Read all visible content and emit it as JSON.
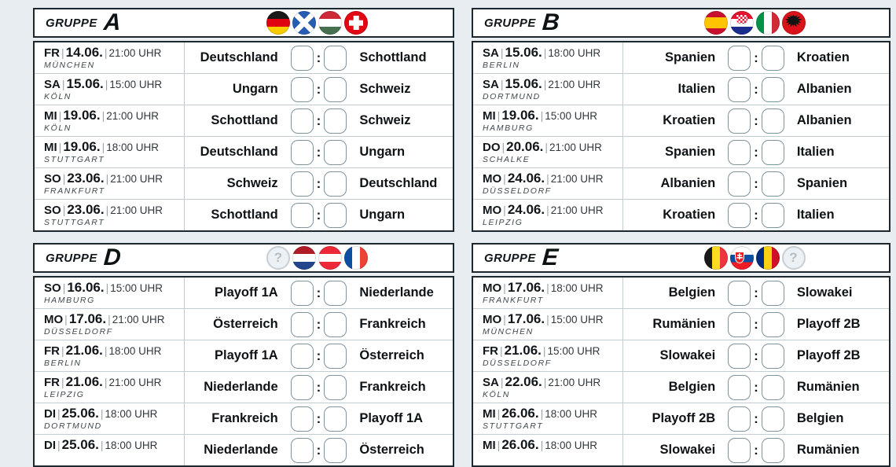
{
  "board": {
    "separator": "|",
    "score_colon": ":",
    "playoff_glyph": "?",
    "colors": {
      "page_background": "#e8edf1",
      "panel_border": "#1c272e",
      "row_separator": "#c2ccd3",
      "score_box_border": "#7f93a0",
      "text": "#0e1316"
    },
    "groups": [
      {
        "name": "A",
        "title_label": "GRUPPE",
        "letter": "A",
        "flags": [
          "germany",
          "scotland",
          "hungary",
          "switzerland"
        ],
        "matches": [
          {
            "day": "FR",
            "date": "14.06.",
            "time": "21:00 UHR",
            "venue": "MÜNCHEN",
            "home": "Deutschland",
            "away": "Schottland",
            "score_home": "",
            "score_away": ""
          },
          {
            "day": "SA",
            "date": "15.06.",
            "time": "15:00 UHR",
            "venue": "KÖLN",
            "home": "Ungarn",
            "away": "Schweiz",
            "score_home": "",
            "score_away": ""
          },
          {
            "day": "MI",
            "date": "19.06.",
            "time": "21:00 UHR",
            "venue": "KÖLN",
            "home": "Schottland",
            "away": "Schweiz",
            "score_home": "",
            "score_away": ""
          },
          {
            "day": "MI",
            "date": "19.06.",
            "time": "18:00 UHR",
            "venue": "STUTTGART",
            "home": "Deutschland",
            "away": "Ungarn",
            "score_home": "",
            "score_away": ""
          },
          {
            "day": "SO",
            "date": "23.06.",
            "time": "21:00 UHR",
            "venue": "FRANKFURT",
            "home": "Schweiz",
            "away": "Deutschland",
            "score_home": "",
            "score_away": ""
          },
          {
            "day": "SO",
            "date": "23.06.",
            "time": "21:00 UHR",
            "venue": "STUTTGART",
            "home": "Schottland",
            "away": "Ungarn",
            "score_home": "",
            "score_away": ""
          }
        ]
      },
      {
        "name": "B",
        "title_label": "GRUPPE",
        "letter": "B",
        "flags": [
          "spain",
          "croatia",
          "italy",
          "albania"
        ],
        "matches": [
          {
            "day": "SA",
            "date": "15.06.",
            "time": "18:00 UHR",
            "venue": "BERLIN",
            "home": "Spanien",
            "away": "Kroatien",
            "score_home": "",
            "score_away": ""
          },
          {
            "day": "SA",
            "date": "15.06.",
            "time": "21:00 UHR",
            "venue": "DORTMUND",
            "home": "Italien",
            "away": "Albanien",
            "score_home": "",
            "score_away": ""
          },
          {
            "day": "MI",
            "date": "19.06.",
            "time": "15:00 UHR",
            "venue": "HAMBURG",
            "home": "Kroatien",
            "away": "Albanien",
            "score_home": "",
            "score_away": ""
          },
          {
            "day": "DO",
            "date": "20.06.",
            "time": "21:00 UHR",
            "venue": "SCHALKE",
            "home": "Spanien",
            "away": "Italien",
            "score_home": "",
            "score_away": ""
          },
          {
            "day": "MO",
            "date": "24.06.",
            "time": "21:00 UHR",
            "venue": "DÜSSELDORF",
            "home": "Albanien",
            "away": "Spanien",
            "score_home": "",
            "score_away": ""
          },
          {
            "day": "MO",
            "date": "24.06.",
            "time": "21:00 UHR",
            "venue": "LEIPZIG",
            "home": "Kroatien",
            "away": "Italien",
            "score_home": "",
            "score_away": ""
          }
        ]
      },
      {
        "name": "D",
        "title_label": "GRUPPE",
        "letter": "D",
        "flags": [
          "playoff",
          "netherlands",
          "austria",
          "france"
        ],
        "matches": [
          {
            "day": "SO",
            "date": "16.06.",
            "time": "15:00 UHR",
            "venue": "HAMBURG",
            "home": "Playoff 1A",
            "away": "Niederlande",
            "score_home": "",
            "score_away": ""
          },
          {
            "day": "MO",
            "date": "17.06.",
            "time": "21:00 UHR",
            "venue": "DÜSSELDORF",
            "home": "Österreich",
            "away": "Frankreich",
            "score_home": "",
            "score_away": ""
          },
          {
            "day": "FR",
            "date": "21.06.",
            "time": "18:00 UHR",
            "venue": "BERLIN",
            "home": "Playoff 1A",
            "away": "Österreich",
            "score_home": "",
            "score_away": ""
          },
          {
            "day": "FR",
            "date": "21.06.",
            "time": "21:00 UHR",
            "venue": "LEIPZIG",
            "home": "Niederlande",
            "away": "Frankreich",
            "score_home": "",
            "score_away": ""
          },
          {
            "day": "DI",
            "date": "25.06.",
            "time": "18:00 UHR",
            "venue": "DORTMUND",
            "home": "Frankreich",
            "away": "Playoff 1A",
            "score_home": "",
            "score_away": ""
          },
          {
            "day": "DI",
            "date": "25.06.",
            "time": "18:00 UHR",
            "venue": "",
            "home": "Niederlande",
            "away": "Österreich",
            "score_home": "",
            "score_away": ""
          }
        ]
      },
      {
        "name": "E",
        "title_label": "GRUPPE",
        "letter": "E",
        "flags": [
          "belgium",
          "slovakia",
          "romania",
          "playoff"
        ],
        "matches": [
          {
            "day": "MO",
            "date": "17.06.",
            "time": "18:00 UHR",
            "venue": "FRANKFURT",
            "home": "Belgien",
            "away": "Slowakei",
            "score_home": "",
            "score_away": ""
          },
          {
            "day": "MO",
            "date": "17.06.",
            "time": "15:00 UHR",
            "venue": "MÜNCHEN",
            "home": "Rumänien",
            "away": "Playoff 2B",
            "score_home": "",
            "score_away": ""
          },
          {
            "day": "FR",
            "date": "21.06.",
            "time": "15:00 UHR",
            "venue": "DÜSSELDORF",
            "home": "Slowakei",
            "away": "Playoff 2B",
            "score_home": "",
            "score_away": ""
          },
          {
            "day": "SA",
            "date": "22.06.",
            "time": "21:00 UHR",
            "venue": "KÖLN",
            "home": "Belgien",
            "away": "Rumänien",
            "score_home": "",
            "score_away": ""
          },
          {
            "day": "MI",
            "date": "26.06.",
            "time": "18:00 UHR",
            "venue": "STUTTGART",
            "home": "Playoff 2B",
            "away": "Belgien",
            "score_home": "",
            "score_away": ""
          },
          {
            "day": "MI",
            "date": "26.06.",
            "time": "18:00 UHR",
            "venue": "",
            "home": "Slowakei",
            "away": "Rumänien",
            "score_home": "",
            "score_away": ""
          }
        ]
      }
    ]
  }
}
